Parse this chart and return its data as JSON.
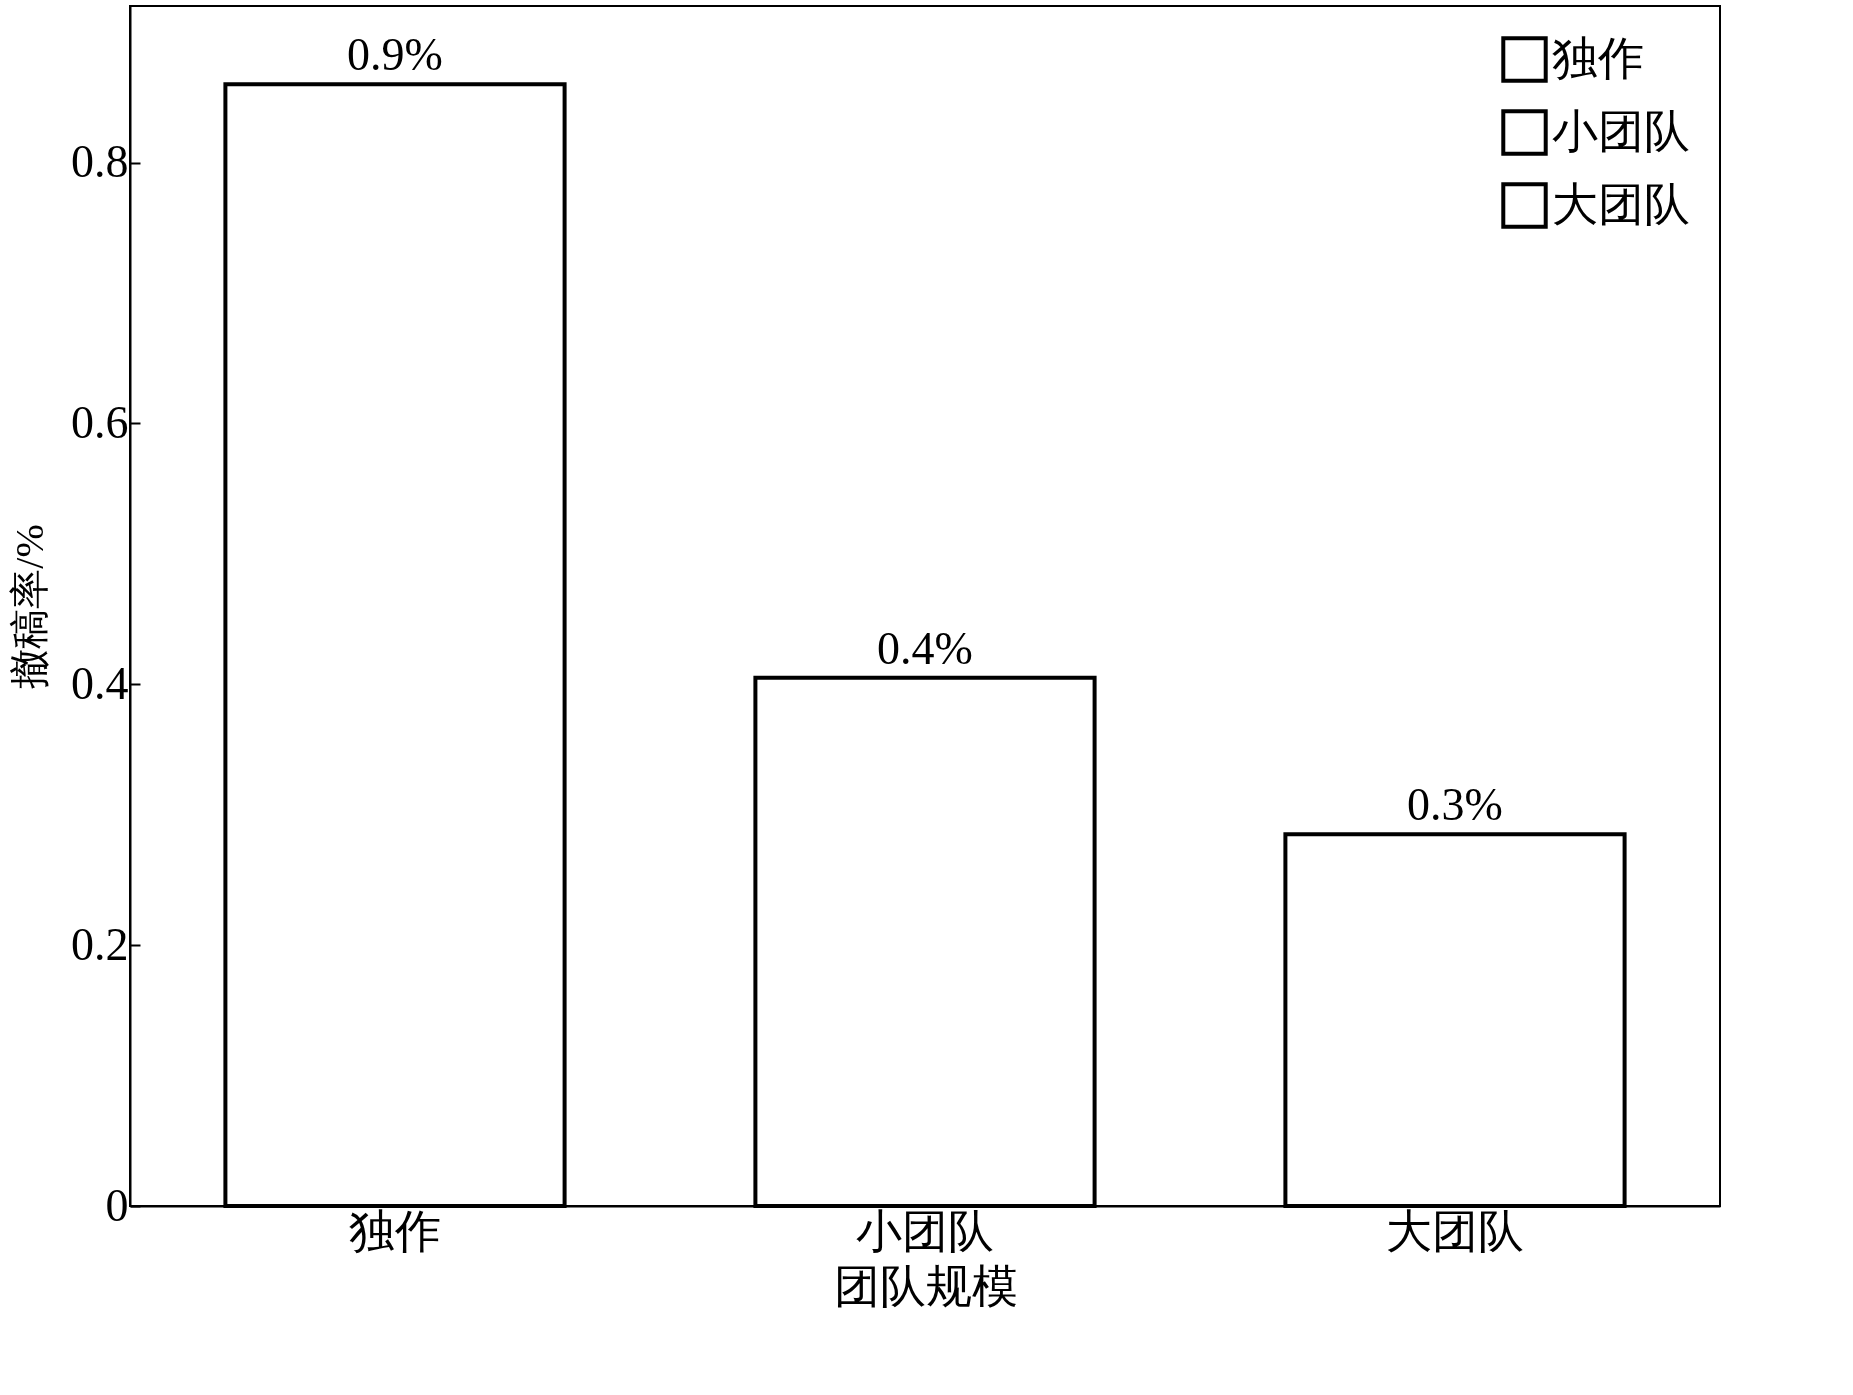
{
  "chart_data": {
    "type": "bar",
    "xlabel": "团队规模",
    "ylabel": "撤稿率/%",
    "categories": [
      "独作",
      "小团队",
      "大团队"
    ],
    "series": [
      {
        "name": "独作",
        "color": "#ffffff",
        "values": [
          0.86,
          null,
          null
        ]
      },
      {
        "name": "小团队",
        "color": "#ffffff",
        "values": [
          null,
          0.405,
          null
        ]
      },
      {
        "name": "大团队",
        "color": "#ffffff",
        "values": [
          null,
          null,
          0.285
        ]
      }
    ],
    "value_labels": [
      "0.9%",
      "0.4%",
      "0.3%"
    ],
    "ylim": [
      0,
      0.92
    ],
    "yticks": [
      0,
      0.2,
      0.4,
      0.6,
      0.8
    ],
    "legend": "top right",
    "grid": false
  }
}
